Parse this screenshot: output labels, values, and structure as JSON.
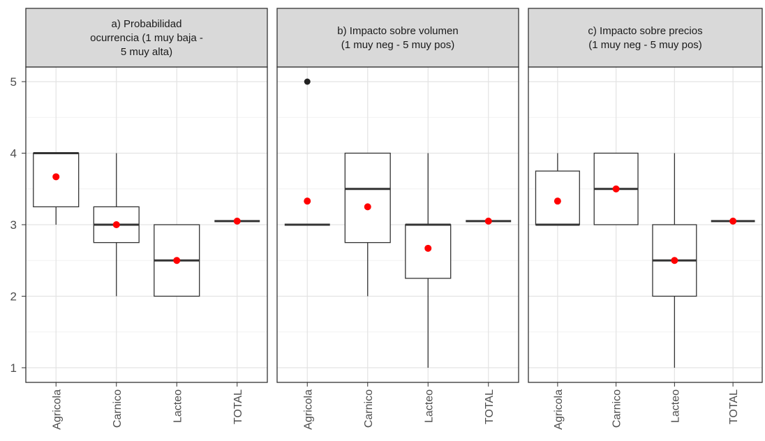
{
  "chart_data": {
    "type": "boxplot",
    "categories": [
      "Agricola",
      "Carnico",
      "Lacteo",
      "TOTAL"
    ],
    "ylim": [
      0.8,
      5.2
    ],
    "yticks": [
      1,
      2,
      3,
      4,
      5
    ],
    "grid": true,
    "colors": {
      "mean_point": "#ff0000",
      "outlier_point": "#222222",
      "strip_fill": "#d9d9d9",
      "box_line": "#333333"
    },
    "panels": [
      {
        "title": "a) Probabilidad ocurrencia (1 muy baja - 5 muy alta)",
        "title_lines": [
          "a) Probabilidad",
          "ocurrencia (1 muy baja -",
          "5 muy alta)"
        ],
        "boxes": [
          {
            "category": "Agricola",
            "min": 3,
            "q1": 3.25,
            "median": 4,
            "q3": 4,
            "max": 4,
            "mean": 3.67,
            "outliers": []
          },
          {
            "category": "Carnico",
            "min": 2,
            "q1": 2.75,
            "median": 3,
            "q3": 3.25,
            "max": 4,
            "mean": 3.0,
            "outliers": []
          },
          {
            "category": "Lacteo",
            "min": 2,
            "q1": 2,
            "median": 2.5,
            "q3": 3,
            "max": 3,
            "mean": 2.5,
            "outliers": []
          },
          {
            "category": "TOTAL",
            "min": 3.05,
            "q1": 3.05,
            "median": 3.05,
            "q3": 3.05,
            "max": 3.05,
            "mean": 3.05,
            "outliers": []
          }
        ]
      },
      {
        "title": "b) Impacto sobre volumen (1 muy neg - 5 muy pos)",
        "title_lines": [
          "b) Impacto sobre volumen",
          "(1 muy neg - 5 muy pos)"
        ],
        "boxes": [
          {
            "category": "Agricola",
            "min": 3,
            "q1": 3,
            "median": 3,
            "q3": 3,
            "max": 3,
            "mean": 3.33,
            "outliers": [
              5
            ]
          },
          {
            "category": "Carnico",
            "min": 2,
            "q1": 2.75,
            "median": 3.5,
            "q3": 4,
            "max": 4,
            "mean": 3.25,
            "outliers": []
          },
          {
            "category": "Lacteo",
            "min": 1,
            "q1": 2.25,
            "median": 3,
            "q3": 3,
            "max": 4,
            "mean": 2.67,
            "outliers": []
          },
          {
            "category": "TOTAL",
            "min": 3.05,
            "q1": 3.05,
            "median": 3.05,
            "q3": 3.05,
            "max": 3.05,
            "mean": 3.05,
            "outliers": []
          }
        ]
      },
      {
        "title": "c) Impacto sobre precios (1 muy neg - 5 muy pos)",
        "title_lines": [
          "c) Impacto sobre precios",
          "(1 muy neg - 5 muy pos)"
        ],
        "boxes": [
          {
            "category": "Agricola",
            "min": 3,
            "q1": 3,
            "median": 3,
            "q3": 3.75,
            "max": 4,
            "mean": 3.33,
            "outliers": []
          },
          {
            "category": "Carnico",
            "min": 3,
            "q1": 3,
            "median": 3.5,
            "q3": 4,
            "max": 4,
            "mean": 3.5,
            "outliers": []
          },
          {
            "category": "Lacteo",
            "min": 1,
            "q1": 2,
            "median": 2.5,
            "q3": 3,
            "max": 4,
            "mean": 2.5,
            "outliers": []
          },
          {
            "category": "TOTAL",
            "min": 3.05,
            "q1": 3.05,
            "median": 3.05,
            "q3": 3.05,
            "max": 3.05,
            "mean": 3.05,
            "outliers": []
          }
        ]
      }
    ]
  }
}
